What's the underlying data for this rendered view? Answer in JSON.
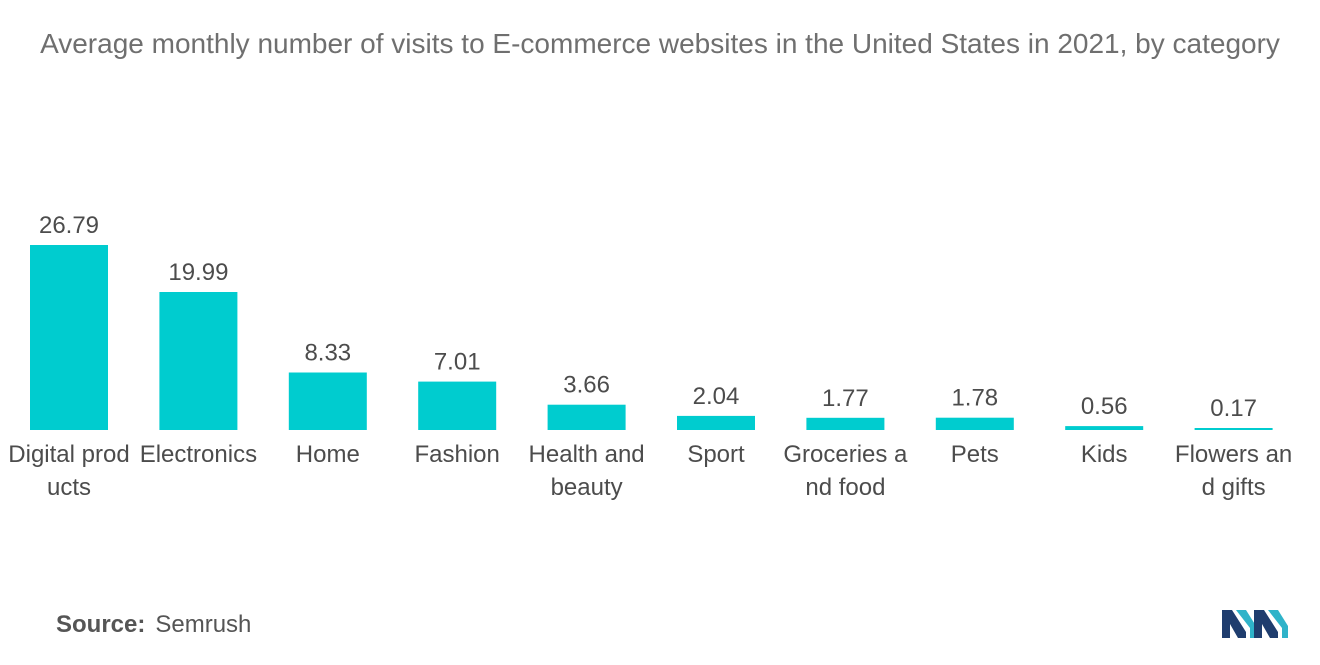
{
  "chart_data": {
    "type": "bar",
    "title": "Average monthly number of visits to E-commerce websites in the United States in 2021, by category",
    "categories": [
      "Digital products",
      "Electronics",
      "Home",
      "Fashion",
      "Health and beauty",
      "Sport",
      "Groceries and food",
      "Pets",
      "Kids",
      "Flowers and gifts"
    ],
    "values": [
      26.79,
      19.99,
      8.33,
      7.01,
      3.66,
      2.04,
      1.77,
      1.78,
      0.56,
      0.17
    ],
    "data_labels": [
      "26.79",
      "19.99",
      "8.33",
      "7.01",
      "3.66",
      "2.04",
      "1.77",
      "1.78",
      "0.56",
      "0.17"
    ],
    "xlabel": "",
    "ylabel": "",
    "ylim": [
      0,
      26.79
    ],
    "grid": false,
    "legend": "none",
    "bar_color": "#00cccf"
  },
  "source": {
    "label": "Source:",
    "value": "Semrush"
  },
  "logo": {
    "icon": "mordor-intelligence-logo-icon",
    "colors": [
      "#1f3d6e",
      "#2fb3c9"
    ]
  }
}
